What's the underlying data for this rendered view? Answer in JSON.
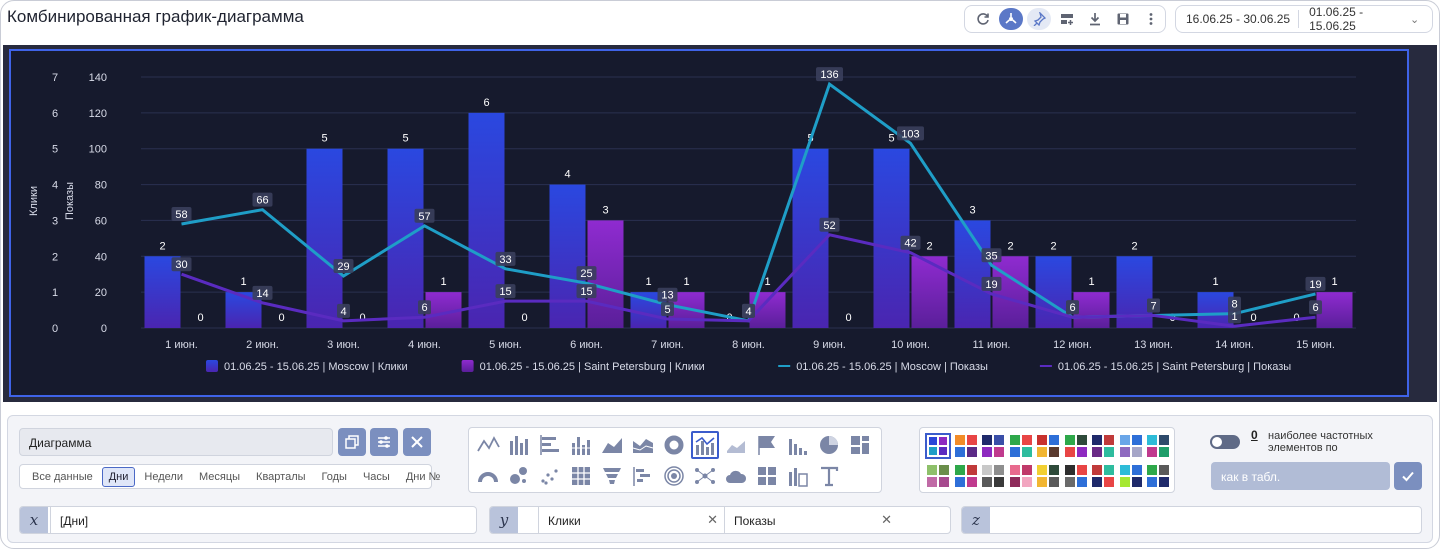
{
  "header": {
    "title": "Комбинированная график-диаграмма",
    "date_range_1": "16.06.25 - 30.06.25",
    "date_range_2": "01.06.25 - 15.06.25"
  },
  "toolbar": {
    "icons": [
      "refresh-icon",
      "hierarchy-icon",
      "pin-icon",
      "add-widget-icon",
      "download-icon",
      "save-icon",
      "more-icon"
    ]
  },
  "chart_data": {
    "type": "bar",
    "categories": [
      "1 июн.",
      "2 июн.",
      "3 июн.",
      "4 июн.",
      "5 июн.",
      "6 июн.",
      "7 июн.",
      "8 июн.",
      "9 июн.",
      "10 июн.",
      "11 июн.",
      "12 июн.",
      "13 июн.",
      "14 июн.",
      "15 июн."
    ],
    "ylabel_left": "Клики",
    "ylabel_right": "Показы",
    "ylim_left": [
      0,
      7
    ],
    "ylim_right": [
      0,
      140
    ],
    "yticks_left": [
      0,
      1,
      2,
      3,
      4,
      5,
      6,
      7
    ],
    "yticks_right": [
      0,
      20,
      40,
      60,
      80,
      100,
      120,
      140
    ],
    "legend_position": "bottom",
    "grid": true,
    "series": [
      {
        "name": "01.06.25 - 15.06.25 | Moscow | Клики",
        "kind": "bar",
        "axis": "left",
        "color": "#2b46d8",
        "values": [
          2,
          1,
          5,
          5,
          6,
          4,
          1,
          0,
          5,
          5,
          3,
          2,
          2,
          1,
          0
        ]
      },
      {
        "name": "01.06.25 - 15.06.25 | Saint Petersburg | Клики",
        "kind": "bar",
        "axis": "left",
        "color": "#8e2ac0",
        "values": [
          0,
          0,
          0,
          1,
          0,
          3,
          1,
          1,
          0,
          2,
          2,
          1,
          0,
          0,
          1
        ]
      },
      {
        "name": "01.06.25 - 15.06.25 | Moscow | Показы",
        "kind": "line",
        "axis": "right",
        "color": "#1f9ec7",
        "values": [
          58,
          66,
          29,
          57,
          33,
          25,
          13,
          4,
          136,
          103,
          35,
          6,
          7,
          8,
          19
        ]
      },
      {
        "name": "01.06.25 - 15.06.25 | Saint Petersburg | Показы",
        "kind": "line",
        "axis": "right",
        "color": "#5a2bc0",
        "values": [
          30,
          14,
          4,
          6,
          15,
          15,
          5,
          4,
          52,
          42,
          19,
          6,
          7,
          1,
          6
        ]
      }
    ]
  },
  "controls": {
    "chart_name": "Диаграмма",
    "periods": [
      "Все данные",
      "Дни",
      "Недели",
      "Месяцы",
      "Кварталы",
      "Годы",
      "Часы",
      "Дни №"
    ],
    "period_selected": "Дни",
    "chart_types_row1": [
      "line-chart-icon",
      "bar-chart-icon",
      "horizontal-bar-icon",
      "stacked-bar-icon",
      "area-chart-icon",
      "stacked-area-icon",
      "donut-chart-icon",
      "combo-chart-icon",
      "heat-icon",
      "flag-chart-icon",
      "histogram-icon",
      "pie-chart-icon",
      "treemap-icon"
    ],
    "chart_types_row2": [
      "gauge-icon",
      "bubble-icon",
      "scatter-icon",
      "grid-icon",
      "funnel-icon",
      "gantt-icon",
      "radar-icon",
      "network-icon",
      "cloud-icon",
      "table-layout-icon",
      "column-table-icon",
      "text-icon"
    ],
    "chart_type_selected": "combo-chart-icon",
    "palettes": [
      [
        "#2b46d8",
        "#8e2ac0",
        "#1f9ec7",
        "#5a2bc0"
      ],
      [
        "#f28c28",
        "#e84545",
        "#2e6fd8",
        "#5b2a86"
      ],
      [
        "#1f2a6b",
        "#3a4fa8",
        "#8e2ac0",
        "#c03a8e"
      ],
      [
        "#2ea84a",
        "#e84545",
        "#2e6fd8",
        "#2ebc9e"
      ],
      [
        "#c8322e",
        "#2e6fd8",
        "#f2b632",
        "#5a3a2e"
      ],
      [
        "#2ea84a",
        "#2e4a3a",
        "#e84545",
        "#8e2ac0"
      ],
      [
        "#1f2a6b",
        "#c03a3a",
        "#6a2a86",
        "#2ebc9e"
      ],
      [
        "#6aa6e8",
        "#2e6fd8",
        "#8e6ac0",
        "#a6a6c8"
      ],
      [
        "#2ebcd8",
        "#2e4a6b",
        "#c03a8e",
        "#1f9e6a"
      ],
      [
        "#8ec06a",
        "#6a8e4a",
        "#c06aa6",
        "#a64a8e"
      ],
      [
        "#2ea84a",
        "#c03a3a",
        "#2e6fd8",
        "#c03a8e"
      ],
      [
        "#c8c8c8",
        "#8e8e8e",
        "#5a5a5a",
        "#3a3a3a"
      ],
      [
        "#e86a8e",
        "#c03a6a",
        "#8e2a5a",
        "#f2a6c0"
      ],
      [
        "#f2d032",
        "#2e4a3a",
        "#f2b632",
        "#5a5a5a"
      ],
      [
        "#2e2e2e",
        "#e84545",
        "#6a6a6a",
        "#2e6fd8"
      ],
      [
        "#c03a3a",
        "#2ebc9e",
        "#1f2a6b",
        "#e84545"
      ],
      [
        "#2ebcd8",
        "#2e6fd8",
        "#a6e832",
        "#1f2a6b"
      ],
      [
        "#2ea84a",
        "#5a5a5a",
        "#2e6fd8",
        "#1f2a6b"
      ]
    ],
    "top_count": "0",
    "top_label": "наиболее частотных элементов по",
    "as_table_placeholder": "как в табл.",
    "x_axis_value": "[Дни]",
    "y_axis_tags": [
      "Клики",
      "Показы"
    ],
    "x_symbol": "x",
    "y_symbol": "y",
    "z_symbol": "z"
  }
}
